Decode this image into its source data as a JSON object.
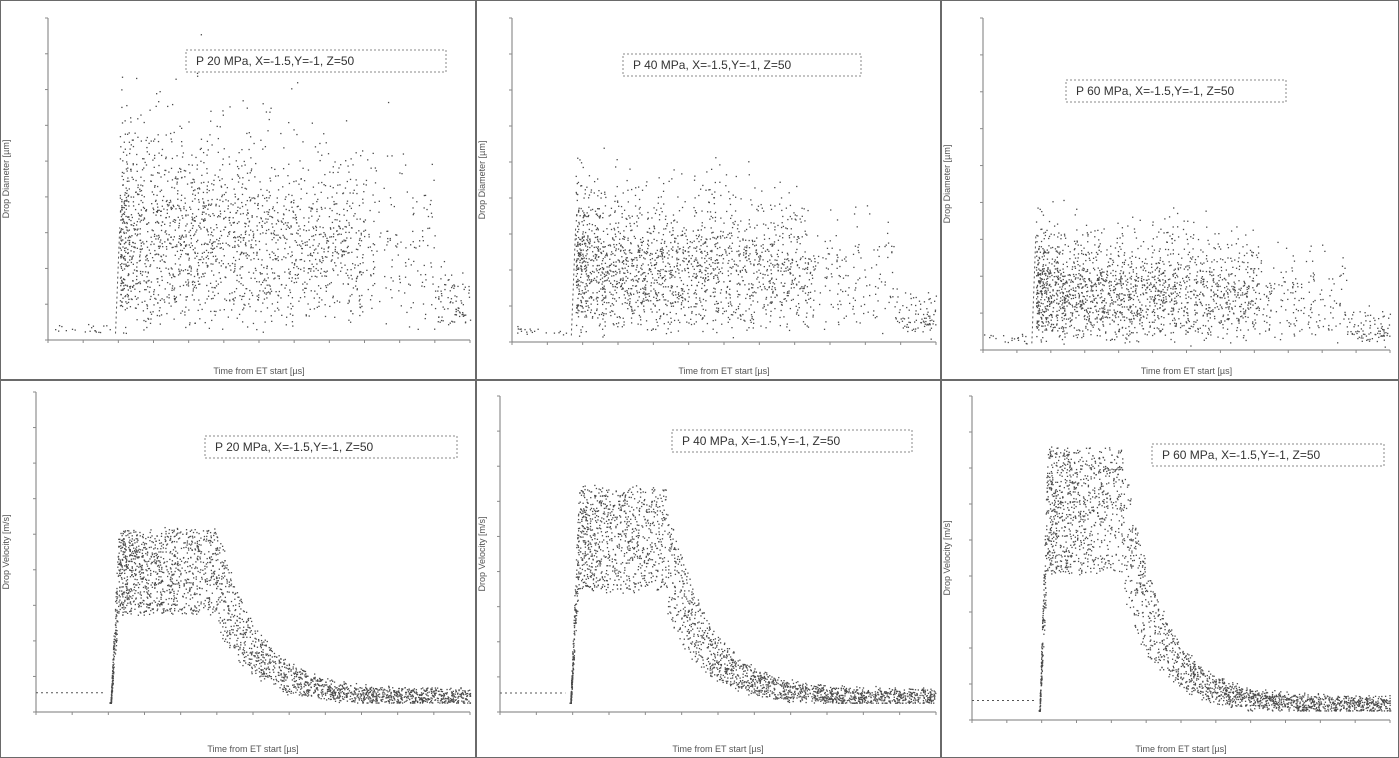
{
  "figure": {
    "background": "#ffffff",
    "point_color": "#4a4a4a"
  },
  "chart_data": [
    {
      "type": "scatter",
      "legend": "P   20 MPa, X=-1.5,Y=-1, Z=50",
      "xlabel": "Time from ET start [µs]",
      "ylabel": "Drop Diameter [µm]",
      "shape": "diameter",
      "xlim": [
        0,
        1
      ],
      "ylim": [
        0,
        1
      ],
      "onset": 0.17,
      "decay_end": 0.75,
      "height": 0.55,
      "density": 1.0
    },
    {
      "type": "scatter",
      "legend": "P   40 MPa, X=-1.5,Y=-1, Z=50",
      "xlabel": "Time from ET start [µs]",
      "ylabel": "Drop Diameter [µm]",
      "shape": "diameter",
      "xlim": [
        0,
        1
      ],
      "ylim": [
        0,
        1
      ],
      "onset": 0.15,
      "decay_end": 0.7,
      "height": 0.4,
      "density": 1.0
    },
    {
      "type": "scatter",
      "legend": "P   60 MPa, X=-1.5,Y=-1, Z=50",
      "xlabel": "Time from ET start [µs]",
      "ylabel": "Drop Diameter [µm]",
      "shape": "diameter",
      "xlim": [
        0,
        1
      ],
      "ylim": [
        0,
        1
      ],
      "onset": 0.13,
      "decay_end": 0.68,
      "height": 0.3,
      "density": 1.0
    },
    {
      "type": "scatter",
      "legend": "P   20 MPa, X=-1.5,Y=-1, Z=50",
      "xlabel": "Time from ET start [µs]",
      "ylabel": "Drop Velocity [m/s]",
      "shape": "velocity",
      "xlim": [
        0,
        1
      ],
      "ylim": [
        0,
        1
      ],
      "onset": 0.17,
      "peak": 0.58,
      "plateau_end": 0.42,
      "density": 1.0
    },
    {
      "type": "scatter",
      "legend": "P   40 MPa, X=-1.5,Y=-1, Z=50",
      "xlabel": "Time from ET start [µs]",
      "ylabel": "Drop Velocity [m/s]",
      "shape": "velocity",
      "xlim": [
        0,
        1
      ],
      "ylim": [
        0,
        1
      ],
      "onset": 0.16,
      "peak": 0.72,
      "plateau_end": 0.38,
      "density": 1.0
    },
    {
      "type": "scatter",
      "legend": "P   60 MPa, X=-1.5,Y=-1, Z=50",
      "xlabel": "Time from ET start [µs]",
      "ylabel": "Drop Velocity [m/s]",
      "shape": "velocity",
      "xlim": [
        0,
        1
      ],
      "ylim": [
        0,
        1
      ],
      "onset": 0.16,
      "peak": 0.85,
      "plateau_end": 0.36,
      "density": 1.0
    }
  ]
}
